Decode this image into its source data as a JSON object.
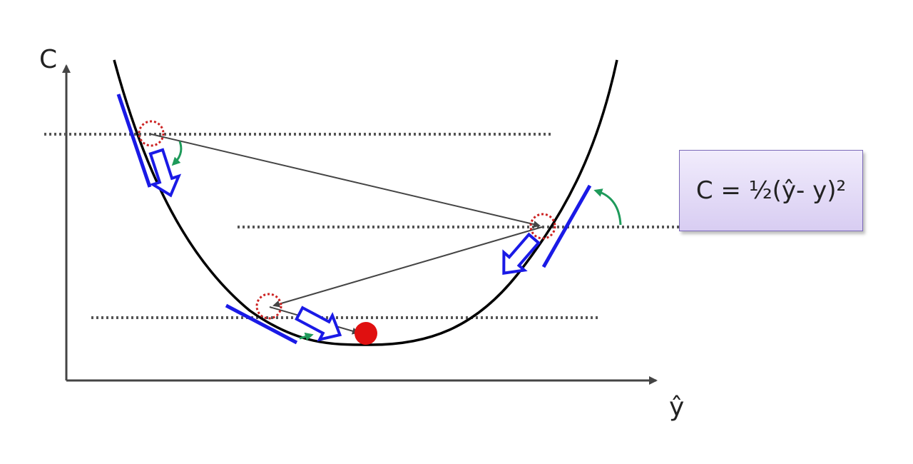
{
  "axes": {
    "y_label": "C",
    "x_label": "ŷ"
  },
  "formula": {
    "text": "C = ½(ŷ- y)²"
  },
  "colors": {
    "curve": "#000000",
    "tangent": "#1a1ae6",
    "arrow_outline": "#1a1ae6",
    "step_path": "#444444",
    "dotted_line": "#555555",
    "point_marker": "#cc2222",
    "minimum": "#e01010",
    "angle_arc": "#1e9a5a",
    "formula_bg": "#e3dbf7"
  }
}
